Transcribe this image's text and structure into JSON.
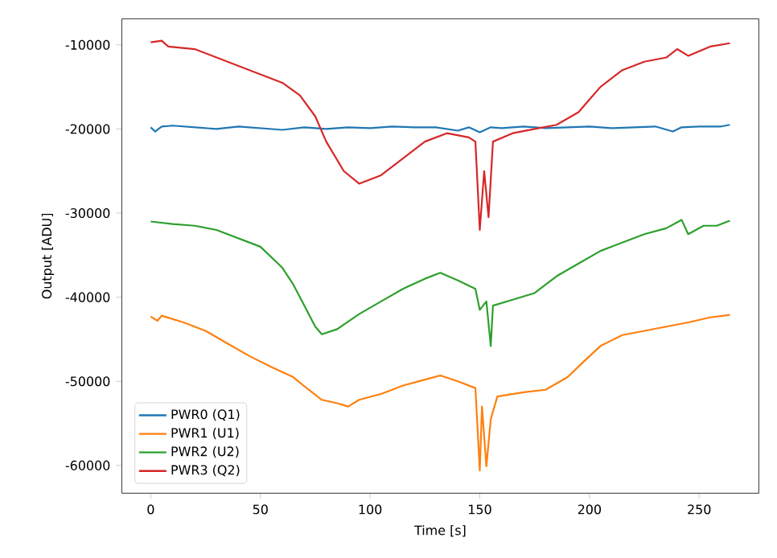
{
  "chart_data": {
    "type": "line",
    "xlabel": "Time [s]",
    "ylabel": "Output [ADU]",
    "xlim": [
      -13.2,
      277.2
    ],
    "ylim": [
      -63300,
      -6900
    ],
    "xticks": [
      0,
      50,
      100,
      150,
      200,
      250
    ],
    "yticks": [
      -60000,
      -50000,
      -40000,
      -30000,
      -20000,
      -10000
    ],
    "grid": false,
    "legend": "bottom left",
    "marker": "none",
    "line_style": "solid",
    "series": [
      {
        "name": "PWR0 (Q1)",
        "color": "#1f77b4",
        "x": [
          0,
          2,
          5,
          10,
          20,
          30,
          40,
          50,
          60,
          70,
          80,
          90,
          100,
          110,
          120,
          130,
          140,
          145,
          150,
          155,
          160,
          170,
          180,
          190,
          200,
          210,
          220,
          230,
          238,
          242,
          250,
          260,
          264
        ],
        "values": [
          -19800,
          -20300,
          -19700,
          -19600,
          -19800,
          -20000,
          -19700,
          -19900,
          -20100,
          -19800,
          -20000,
          -19800,
          -19900,
          -19700,
          -19800,
          -19800,
          -20200,
          -19800,
          -20400,
          -19800,
          -19900,
          -19700,
          -19900,
          -19800,
          -19700,
          -19900,
          -19800,
          -19700,
          -20300,
          -19800,
          -19700,
          -19700,
          -19500
        ]
      },
      {
        "name": "PWR1 (U1)",
        "color": "#ff7f0e",
        "x": [
          0,
          3,
          5,
          15,
          25,
          35,
          45,
          55,
          65,
          72,
          78,
          85,
          90,
          95,
          105,
          115,
          125,
          132,
          140,
          148,
          150,
          151,
          153,
          155,
          158,
          170,
          180,
          190,
          198,
          205,
          215,
          225,
          235,
          245,
          255,
          264
        ],
        "values": [
          -42300,
          -42800,
          -42200,
          -43000,
          -44000,
          -45500,
          -47000,
          -48300,
          -49500,
          -51000,
          -52200,
          -52600,
          -53000,
          -52200,
          -51500,
          -50500,
          -49800,
          -49300,
          -50000,
          -50800,
          -60600,
          -53000,
          -60100,
          -54500,
          -51800,
          -51300,
          -51000,
          -49500,
          -47500,
          -45800,
          -44500,
          -44000,
          -43500,
          -43000,
          -42400,
          -42100
        ]
      },
      {
        "name": "PWR2 (U2)",
        "color": "#2ca02c",
        "x": [
          0,
          10,
          20,
          30,
          40,
          50,
          60,
          65,
          70,
          75,
          78,
          85,
          95,
          105,
          115,
          125,
          132,
          140,
          148,
          150,
          153,
          155,
          156,
          165,
          175,
          185,
          195,
          205,
          215,
          225,
          235,
          242,
          245,
          252,
          258,
          264
        ],
        "values": [
          -31000,
          -31300,
          -31500,
          -32000,
          -33000,
          -34000,
          -36500,
          -38500,
          -41000,
          -43500,
          -44400,
          -43800,
          -42000,
          -40500,
          -39000,
          -37800,
          -37100,
          -38000,
          -39000,
          -41500,
          -40500,
          -45800,
          -41000,
          -40300,
          -39500,
          -37500,
          -36000,
          -34500,
          -33500,
          -32500,
          -31800,
          -30800,
          -32500,
          -31500,
          -31500,
          -30900
        ]
      },
      {
        "name": "PWR3 (Q2)",
        "color": "#d62728",
        "x": [
          0,
          5,
          8,
          20,
          30,
          40,
          50,
          60,
          68,
          75,
          80,
          88,
          95,
          105,
          115,
          125,
          135,
          145,
          148,
          150,
          152,
          154,
          156,
          165,
          175,
          185,
          195,
          200,
          205,
          215,
          225,
          235,
          240,
          245,
          255,
          264
        ],
        "values": [
          -9700,
          -9500,
          -10200,
          -10500,
          -11500,
          -12500,
          -13500,
          -14500,
          -16000,
          -18500,
          -21500,
          -25000,
          -26500,
          -25500,
          -23500,
          -21500,
          -20500,
          -21000,
          -21500,
          -32000,
          -25000,
          -30500,
          -21500,
          -20500,
          -20000,
          -19500,
          -18000,
          -16500,
          -15000,
          -13000,
          -12000,
          -11500,
          -10500,
          -11300,
          -10200,
          -9800
        ]
      }
    ]
  }
}
